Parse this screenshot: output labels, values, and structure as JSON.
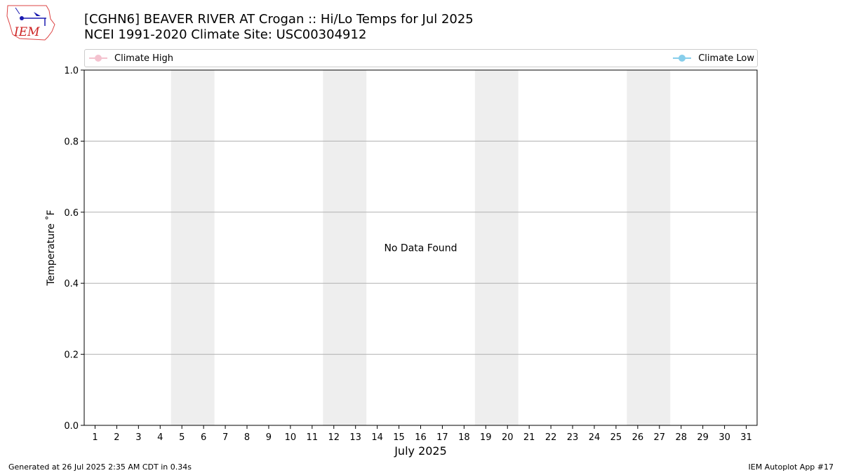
{
  "header": {
    "title_line1": "[CGHN6] BEAVER RIVER  AT Crogan :: Hi/Lo Temps for Jul 2025",
    "title_line2": "NCEI 1991-2020 Climate Site: USC00304912"
  },
  "logo": {
    "text": "IEM"
  },
  "footer": {
    "generated": "Generated at 26 Jul 2025 2:35 AM CDT in 0.34s",
    "app": "IEM Autoplot App #17"
  },
  "colors": {
    "climate_high": "#f4c2cf",
    "climate_low": "#87ceeb",
    "weekend_band": "#eeeeee",
    "grid": "#b0b0b0"
  },
  "chart_data": {
    "type": "line",
    "title": "[CGHN6] BEAVER RIVER  AT Crogan :: Hi/Lo Temps for Jul 2025",
    "xlabel": "July 2025",
    "ylabel": "Temperature $^\\circ$F",
    "ylabel_display": "Temperature ˚F",
    "x_ticks": [
      "1",
      "2",
      "3",
      "4",
      "5",
      "6",
      "7",
      "8",
      "9",
      "10",
      "11",
      "12",
      "13",
      "14",
      "15",
      "16",
      "17",
      "18",
      "19",
      "20",
      "21",
      "22",
      "23",
      "24",
      "25",
      "26",
      "27",
      "28",
      "29",
      "30",
      "31"
    ],
    "y_ticks": [
      "0.0",
      "0.2",
      "0.4",
      "0.6",
      "0.8",
      "1.0"
    ],
    "xlim": [
      0.5,
      31.5
    ],
    "ylim": [
      0,
      1
    ],
    "grid": "y",
    "legend": "top",
    "shaded_days": [
      [
        5,
        6
      ],
      [
        12,
        13
      ],
      [
        19,
        20
      ],
      [
        26,
        27
      ]
    ],
    "annotation": "No Data Found",
    "series": [
      {
        "name": "Climate High",
        "values": []
      },
      {
        "name": "Climate Low",
        "values": []
      }
    ]
  }
}
